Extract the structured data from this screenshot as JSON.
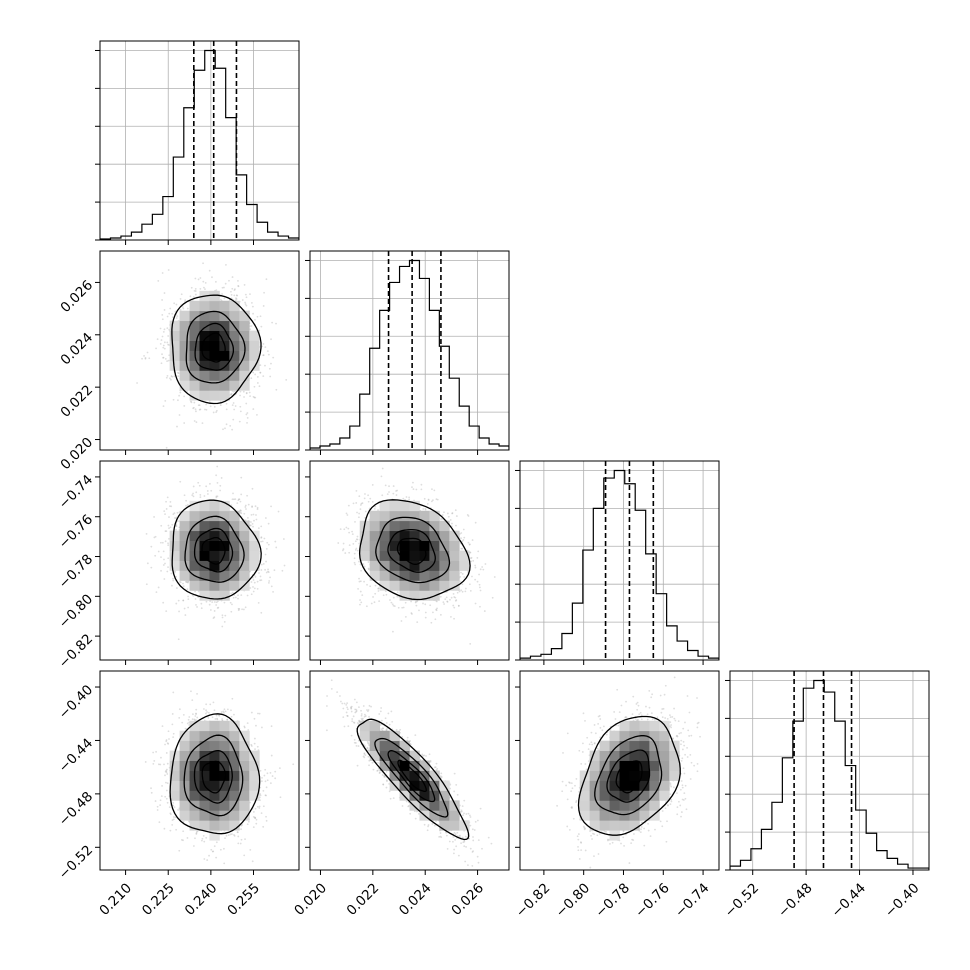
{
  "chart_data": {
    "type": "corner",
    "variables": [
      {
        "ticks": [
          0.21,
          0.225,
          0.24,
          0.255
        ],
        "tick_labels": [
          "0.210",
          "0.225",
          "0.240",
          "0.255"
        ],
        "range": [
          0.201,
          0.271
        ],
        "median": 0.241,
        "q16": 0.234,
        "q84": 0.249,
        "hist_counts": [
          0.5,
          1,
          2,
          4,
          8,
          13,
          22,
          42,
          67,
          86,
          96,
          87,
          62,
          33,
          18,
          9,
          4,
          2,
          1
        ]
      },
      {
        "ticks": [
          0.02,
          0.022,
          0.024,
          0.026
        ],
        "tick_labels": [
          "0.020",
          "0.022",
          "0.024",
          "0.026"
        ],
        "range": [
          0.0196,
          0.0272
        ],
        "median": 0.0235,
        "q16": 0.0226,
        "q84": 0.0246,
        "hist_counts": [
          1,
          2,
          3,
          6,
          12,
          28,
          51,
          70,
          84,
          92,
          95,
          86,
          70,
          52,
          36,
          22,
          12,
          6,
          3,
          2
        ]
      },
      {
        "ticks": [
          -0.82,
          -0.8,
          -0.78,
          -0.76,
          -0.74
        ],
        "tick_labels": [
          "−0.82",
          "−0.80",
          "−0.78",
          "−0.76",
          "−0.74"
        ],
        "range": [
          -0.832,
          -0.732
        ],
        "median": -0.777,
        "q16": -0.789,
        "q84": -0.765,
        "hist_counts": [
          1,
          2,
          3,
          6,
          14,
          30,
          58,
          80,
          96,
          100,
          93,
          79,
          56,
          35,
          18,
          10,
          5,
          2,
          1
        ]
      },
      {
        "ticks": [
          -0.52,
          -0.48,
          -0.44,
          -0.4
        ],
        "tick_labels": [
          "−0.52",
          "−0.48",
          "−0.44",
          "−0.40"
        ],
        "range": [
          -0.537,
          -0.388
        ],
        "median": -0.467,
        "q16": -0.489,
        "q84": -0.446,
        "hist_counts": [
          2,
          5,
          11,
          21,
          35,
          58,
          77,
          94,
          98,
          92,
          77,
          54,
          31,
          19,
          10,
          6,
          3,
          1,
          1
        ]
      }
    ],
    "correlations": {
      "1-0": 0.0,
      "2-0": -0.05,
      "2-1": -0.2,
      "3-0": 0.0,
      "3-1": -0.88,
      "3-2": 0.3
    },
    "contour_levels_sigma": [
      0.5,
      1.0,
      1.5,
      2.0
    ],
    "grid": true,
    "quantiles": [
      0.16,
      0.5,
      0.84
    ]
  }
}
